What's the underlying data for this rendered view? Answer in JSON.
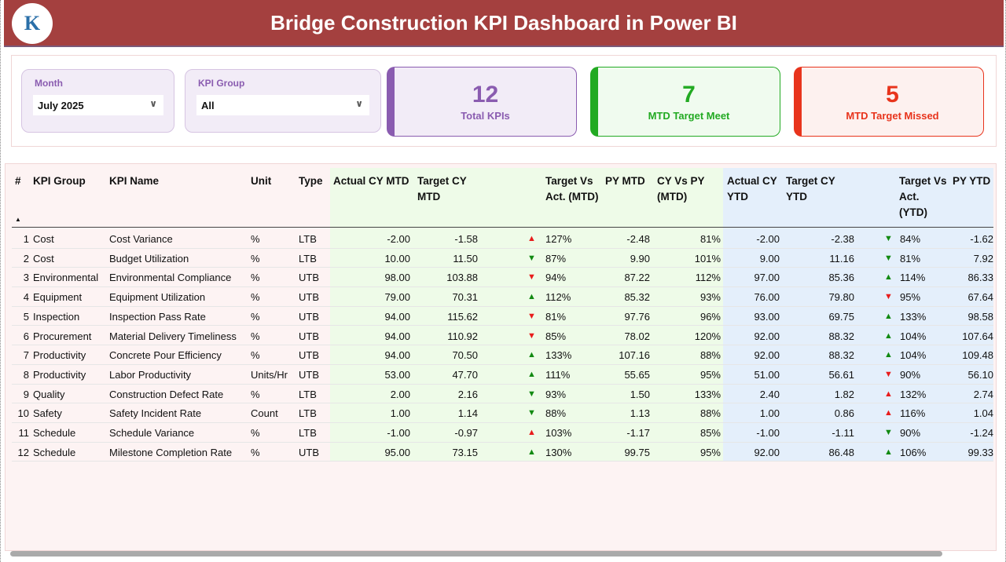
{
  "header": {
    "title": "Bridge Construction KPI Dashboard in Power BI",
    "logo_text": "K"
  },
  "filters": {
    "month": {
      "label": "Month",
      "value": "July 2025"
    },
    "kpi_group": {
      "label": "KPI Group",
      "value": "All"
    }
  },
  "cards": [
    {
      "value": "12",
      "label": "Total KPIs",
      "color": "#8a5cb0"
    },
    {
      "value": "7",
      "label": "MTD Target Meet",
      "color": "#22aa22"
    },
    {
      "value": "5",
      "label": "MTD Target Missed",
      "color": "#e8341c"
    }
  ],
  "table": {
    "headers": [
      "#",
      "KPI Group",
      "KPI Name",
      "Unit",
      "Type",
      "Actual CY MTD",
      "Target CY MTD",
      "Target Vs Act. (MTD)",
      "PY MTD",
      "CY Vs PY (MTD)",
      "Actual CY YTD",
      "Target CY YTD",
      "Target Vs Act. (YTD)",
      "PY YTD"
    ],
    "rows": [
      [
        "1",
        "Cost",
        "Cost Variance",
        "%",
        "LTB",
        "-2.00",
        "-1.58",
        "up-red",
        "127%",
        "-2.48",
        "81%",
        "-2.00",
        "-2.38",
        "down-green",
        "84%",
        "-1.62"
      ],
      [
        "2",
        "Cost",
        "Budget Utilization",
        "%",
        "LTB",
        "10.00",
        "11.50",
        "down-green",
        "87%",
        "9.90",
        "101%",
        "9.00",
        "11.16",
        "down-green",
        "81%",
        "7.92"
      ],
      [
        "3",
        "Environmental",
        "Environmental Compliance",
        "%",
        "UTB",
        "98.00",
        "103.88",
        "down-red",
        "94%",
        "87.22",
        "112%",
        "97.00",
        "85.36",
        "up-green",
        "114%",
        "86.33"
      ],
      [
        "4",
        "Equipment",
        "Equipment Utilization",
        "%",
        "UTB",
        "79.00",
        "70.31",
        "up-green",
        "112%",
        "85.32",
        "93%",
        "76.00",
        "79.80",
        "down-red",
        "95%",
        "67.64"
      ],
      [
        "5",
        "Inspection",
        "Inspection Pass Rate",
        "%",
        "UTB",
        "94.00",
        "115.62",
        "down-red",
        "81%",
        "97.76",
        "96%",
        "93.00",
        "69.75",
        "up-green",
        "133%",
        "98.58"
      ],
      [
        "6",
        "Procurement",
        "Material Delivery Timeliness",
        "%",
        "UTB",
        "94.00",
        "110.92",
        "down-red",
        "85%",
        "78.02",
        "120%",
        "92.00",
        "88.32",
        "up-green",
        "104%",
        "107.64"
      ],
      [
        "7",
        "Productivity",
        "Concrete Pour Efficiency",
        "%",
        "UTB",
        "94.00",
        "70.50",
        "up-green",
        "133%",
        "107.16",
        "88%",
        "92.00",
        "88.32",
        "up-green",
        "104%",
        "109.48"
      ],
      [
        "8",
        "Productivity",
        "Labor Productivity",
        "Units/Hr",
        "UTB",
        "53.00",
        "47.70",
        "up-green",
        "111%",
        "55.65",
        "95%",
        "51.00",
        "56.61",
        "down-red",
        "90%",
        "56.10"
      ],
      [
        "9",
        "Quality",
        "Construction Defect Rate",
        "%",
        "LTB",
        "2.00",
        "2.16",
        "down-green",
        "93%",
        "1.50",
        "133%",
        "2.40",
        "1.82",
        "up-red",
        "132%",
        "2.74"
      ],
      [
        "10",
        "Safety",
        "Safety Incident Rate",
        "Count",
        "LTB",
        "1.00",
        "1.14",
        "down-green",
        "88%",
        "1.13",
        "88%",
        "1.00",
        "0.86",
        "up-red",
        "116%",
        "1.04"
      ],
      [
        "11",
        "Schedule",
        "Schedule Variance",
        "%",
        "LTB",
        "-1.00",
        "-0.97",
        "up-red",
        "103%",
        "-1.17",
        "85%",
        "-1.00",
        "-1.11",
        "down-green",
        "90%",
        "-1.24"
      ],
      [
        "12",
        "Schedule",
        "Milestone Completion Rate",
        "%",
        "UTB",
        "95.00",
        "73.15",
        "up-green",
        "130%",
        "99.75",
        "95%",
        "92.00",
        "86.48",
        "up-green",
        "106%",
        "99.33"
      ]
    ]
  },
  "colors": {
    "header": "#a4403f",
    "up_down_red": "#e81c1c",
    "up_down_green": "#128a12",
    "mtd_bg": "#eefbe8",
    "ytd_bg": "#e4effb"
  }
}
